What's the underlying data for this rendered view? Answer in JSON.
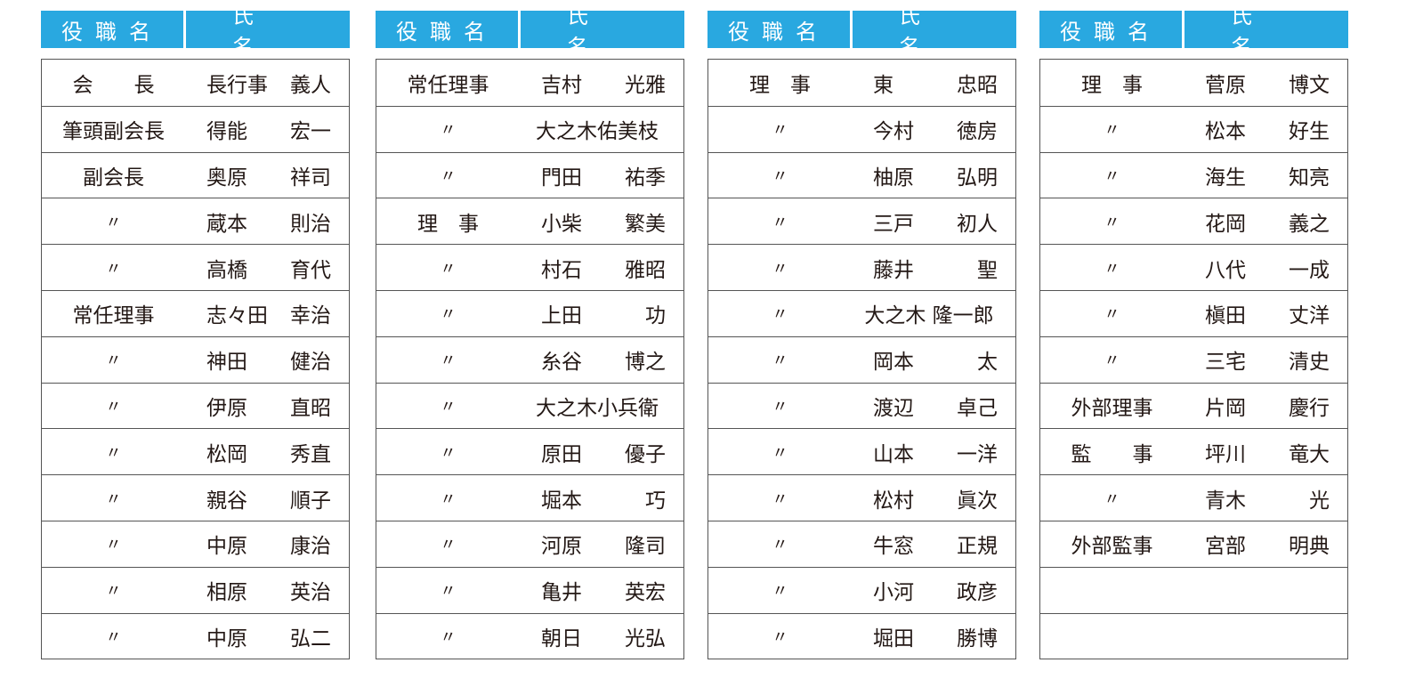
{
  "header": {
    "role_label": "役職名",
    "name_label": "氏名"
  },
  "colors": {
    "header_bg": "#29a8e0",
    "header_text": "#ffffff",
    "border": "#555555"
  },
  "tables": [
    {
      "rows": [
        {
          "role": "会　　長",
          "surname": "長行事",
          "given": "義人"
        },
        {
          "role": "筆頭副会長",
          "surname": "得能",
          "given": "宏一"
        },
        {
          "role": "副会長",
          "surname": "奥原",
          "given": "祥司"
        },
        {
          "role": "〃",
          "surname": "蔵本",
          "given": "則治"
        },
        {
          "role": "〃",
          "surname": "高橋",
          "given": "育代"
        },
        {
          "role": "常任理事",
          "surname": "志々田",
          "given": "幸治"
        },
        {
          "role": "〃",
          "surname": "神田",
          "given": "健治"
        },
        {
          "role": "〃",
          "surname": "伊原",
          "given": "直昭"
        },
        {
          "role": "〃",
          "surname": "松岡",
          "given": "秀直"
        },
        {
          "role": "〃",
          "surname": "親谷",
          "given": "順子"
        },
        {
          "role": "〃",
          "surname": "中原",
          "given": "康治"
        },
        {
          "role": "〃",
          "surname": "相原",
          "given": "英治"
        },
        {
          "role": "〃",
          "surname": "中原",
          "given": "弘二"
        }
      ]
    },
    {
      "rows": [
        {
          "role": "常任理事",
          "surname": "吉村",
          "given": "光雅"
        },
        {
          "role": "〃",
          "surname": "大之木佑美枝",
          "given": ""
        },
        {
          "role": "〃",
          "surname": "門田",
          "given": "祐季"
        },
        {
          "role": "理　事",
          "surname": "小柴",
          "given": "繁美"
        },
        {
          "role": "〃",
          "surname": "村石",
          "given": "雅昭"
        },
        {
          "role": "〃",
          "surname": "上田",
          "given": "功"
        },
        {
          "role": "〃",
          "surname": "糸谷",
          "given": "博之"
        },
        {
          "role": "〃",
          "surname": "大之木小兵衛",
          "given": ""
        },
        {
          "role": "〃",
          "surname": "原田",
          "given": "優子"
        },
        {
          "role": "〃",
          "surname": "堀本",
          "given": "巧"
        },
        {
          "role": "〃",
          "surname": "河原",
          "given": "隆司"
        },
        {
          "role": "〃",
          "surname": "亀井",
          "given": "英宏"
        },
        {
          "role": "〃",
          "surname": "朝日",
          "given": "光弘"
        }
      ]
    },
    {
      "rows": [
        {
          "role": "理　事",
          "surname": "東",
          "given": "忠昭"
        },
        {
          "role": "〃",
          "surname": "今村",
          "given": "徳房"
        },
        {
          "role": "〃",
          "surname": "柚原",
          "given": "弘明"
        },
        {
          "role": "〃",
          "surname": "三戸",
          "given": "初人"
        },
        {
          "role": "〃",
          "surname": "藤井",
          "given": "聖"
        },
        {
          "role": "〃",
          "surname": "大之木 隆一郎",
          "given": ""
        },
        {
          "role": "〃",
          "surname": "岡本",
          "given": "太"
        },
        {
          "role": "〃",
          "surname": "渡辺",
          "given": "卓己"
        },
        {
          "role": "〃",
          "surname": "山本",
          "given": "一洋"
        },
        {
          "role": "〃",
          "surname": "松村",
          "given": "眞次"
        },
        {
          "role": "〃",
          "surname": "牛窓",
          "given": "正規"
        },
        {
          "role": "〃",
          "surname": "小河",
          "given": "政彦"
        },
        {
          "role": "〃",
          "surname": "堀田",
          "given": "勝博"
        }
      ]
    },
    {
      "rows": [
        {
          "role": "理　事",
          "surname": "菅原",
          "given": "博文"
        },
        {
          "role": "〃",
          "surname": "松本",
          "given": "好生"
        },
        {
          "role": "〃",
          "surname": "海生",
          "given": "知亮"
        },
        {
          "role": "〃",
          "surname": "花岡",
          "given": "義之"
        },
        {
          "role": "〃",
          "surname": "八代",
          "given": "一成"
        },
        {
          "role": "〃",
          "surname": "槇田",
          "given": "丈洋"
        },
        {
          "role": "〃",
          "surname": "三宅",
          "given": "清史"
        },
        {
          "role": "外部理事",
          "surname": "片岡",
          "given": "慶行"
        },
        {
          "role": "監　　事",
          "surname": "坪川",
          "given": "竜大"
        },
        {
          "role": "〃",
          "surname": "青木",
          "given": "光"
        },
        {
          "role": "外部監事",
          "surname": "宮部",
          "given": "明典"
        },
        {
          "role": "",
          "surname": "",
          "given": ""
        },
        {
          "role": "",
          "surname": "",
          "given": ""
        }
      ]
    }
  ]
}
